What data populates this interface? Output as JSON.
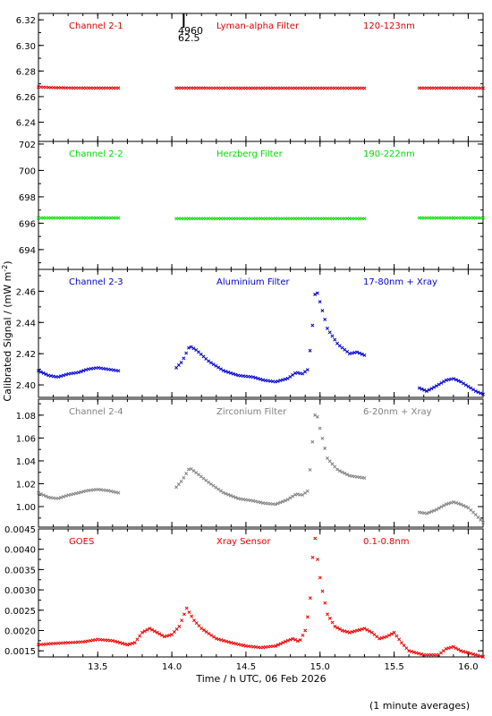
{
  "figure": {
    "ylabel": "Calibrated Signal / (mW m",
    "ylabel_sup": "-2",
    "ylabel_close": ")",
    "xlabel": "Time / h UTC, 06 Feb 2026",
    "footnote": "(1 minute averages)",
    "marker_text_1": "4960",
    "marker_text_2": "62.5",
    "marker_x": 14.08,
    "xlim": [
      13.1,
      16.1
    ],
    "xticks": [
      "13.5",
      "14.0",
      "14.5",
      "15.0",
      "15.5",
      "16.0"
    ],
    "xtick_values": [
      13.5,
      14.0,
      14.5,
      15.0,
      15.5,
      16.0
    ]
  },
  "chart_data": [
    {
      "type": "scatter",
      "channel": "Channel 2-1",
      "filter": "Lyman-alpha Filter",
      "band": "120-123nm",
      "color": "#dd0000",
      "ylim": [
        6.225,
        6.325
      ],
      "yticks": [
        "6.24",
        "6.26",
        "6.28",
        "6.30",
        "6.32"
      ],
      "ytick_values": [
        6.24,
        6.26,
        6.28,
        6.3,
        6.32
      ],
      "segments": [
        {
          "x": [
            13.1,
            13.2,
            13.3,
            13.4,
            13.5,
            13.64
          ],
          "y": [
            6.2675,
            6.267,
            6.2668,
            6.2667,
            6.2667,
            6.2667
          ]
        },
        {
          "x": [
            14.03,
            14.2,
            14.5,
            14.8,
            15.0,
            15.3
          ],
          "y": [
            6.2667,
            6.2667,
            6.2666,
            6.2666,
            6.2666,
            6.2666
          ]
        },
        {
          "x": [
            15.67,
            15.8,
            16.0,
            16.1
          ],
          "y": [
            6.2667,
            6.2667,
            6.2667,
            6.2666
          ]
        }
      ]
    },
    {
      "type": "scatter",
      "channel": "Channel 2-2",
      "filter": "Herzberg Filter",
      "band": "190-222nm",
      "color": "#00dd00",
      "ylim": [
        692.5,
        702.2
      ],
      "yticks": [
        "694",
        "696",
        "698",
        "700",
        "702"
      ],
      "ytick_values": [
        694,
        696,
        698,
        700,
        702
      ],
      "segments": [
        {
          "x": [
            13.1,
            13.3,
            13.5,
            13.64
          ],
          "y": [
            696.4,
            696.4,
            696.4,
            696.4
          ]
        },
        {
          "x": [
            14.03,
            14.3,
            14.6,
            14.9,
            15.3
          ],
          "y": [
            696.35,
            696.35,
            696.35,
            696.35,
            696.35
          ]
        },
        {
          "x": [
            15.67,
            15.9,
            16.1
          ],
          "y": [
            696.4,
            696.4,
            696.4
          ]
        }
      ]
    },
    {
      "type": "scatter",
      "channel": "Channel 2-3",
      "filter": "Aluminium Filter",
      "band": "17-80nm + Xray",
      "color": "#0000cc",
      "ylim": [
        2.392,
        2.474
      ],
      "yticks": [
        "2.40",
        "2.42",
        "2.44",
        "2.46"
      ],
      "ytick_values": [
        2.4,
        2.42,
        2.44,
        2.46
      ],
      "segments": [
        {
          "x": [
            13.1,
            13.17,
            13.23,
            13.3,
            13.37,
            13.43,
            13.5,
            13.57,
            13.64
          ],
          "y": [
            2.409,
            2.406,
            2.405,
            2.407,
            2.408,
            2.41,
            2.411,
            2.41,
            2.409
          ]
        },
        {
          "x": [
            14.03,
            14.07,
            14.12,
            14.17,
            14.25,
            14.35,
            14.45,
            14.55,
            14.62,
            14.7,
            14.78,
            14.84,
            14.88,
            14.92,
            14.95,
            14.97,
            15.0,
            15.05,
            15.12,
            15.2,
            15.25,
            15.3
          ],
          "y": [
            2.411,
            2.415,
            2.425,
            2.422,
            2.415,
            2.409,
            2.406,
            2.405,
            2.403,
            2.402,
            2.404,
            2.408,
            2.407,
            2.41,
            2.439,
            2.463,
            2.453,
            2.436,
            2.426,
            2.42,
            2.421,
            2.419
          ]
        },
        {
          "x": [
            15.67,
            15.72,
            15.78,
            15.85,
            15.9,
            15.95,
            16.0,
            16.05,
            16.1
          ],
          "y": [
            2.398,
            2.396,
            2.399,
            2.403,
            2.404,
            2.402,
            2.399,
            2.396,
            2.394
          ]
        }
      ]
    },
    {
      "type": "scatter",
      "channel": "Channel 2-4",
      "filter": "Zirconium Filter",
      "band": "6-20nm + Xray",
      "color": "#808080",
      "ylim": [
        0.982,
        1.094
      ],
      "yticks": [
        "1.00",
        "1.02",
        "1.04",
        "1.06",
        "1.08"
      ],
      "ytick_values": [
        1.0,
        1.02,
        1.04,
        1.06,
        1.08
      ],
      "segments": [
        {
          "x": [
            13.1,
            13.17,
            13.23,
            13.3,
            13.37,
            13.43,
            13.5,
            13.57,
            13.64
          ],
          "y": [
            1.012,
            1.008,
            1.007,
            1.01,
            1.012,
            1.014,
            1.015,
            1.014,
            1.012
          ]
        },
        {
          "x": [
            14.03,
            14.07,
            14.12,
            14.17,
            14.25,
            14.35,
            14.45,
            14.55,
            14.62,
            14.7,
            14.78,
            14.84,
            14.88,
            14.92,
            14.95,
            14.97,
            15.0,
            15.05,
            15.12,
            15.2,
            15.25,
            15.3
          ],
          "y": [
            1.017,
            1.023,
            1.034,
            1.029,
            1.021,
            1.012,
            1.007,
            1.005,
            1.003,
            1.002,
            1.006,
            1.011,
            1.01,
            1.014,
            1.058,
            1.086,
            1.068,
            1.042,
            1.032,
            1.027,
            1.026,
            1.025
          ]
        },
        {
          "x": [
            15.67,
            15.72,
            15.78,
            15.85,
            15.9,
            15.95,
            16.0,
            16.05,
            16.1
          ],
          "y": [
            0.995,
            0.994,
            0.997,
            1.002,
            1.004,
            1.002,
            0.999,
            0.993,
            0.986
          ]
        }
      ]
    },
    {
      "type": "scatter",
      "channel": "GOES",
      "filter": "Xray Sensor",
      "band": "0.1-0.8nm",
      "color": "#ee0000",
      "ylim": [
        0.00135,
        0.0045
      ],
      "yticks": [
        "0.0015",
        "0.0020",
        "0.0025",
        "0.0030",
        "0.0035",
        "0.0040",
        "0.0045"
      ],
      "ytick_values": [
        0.0015,
        0.002,
        0.0025,
        0.003,
        0.0035,
        0.004,
        0.0045
      ],
      "segments": [
        {
          "x": [
            13.1,
            13.2,
            13.3,
            13.4,
            13.5,
            13.6,
            13.7,
            13.75,
            13.8,
            13.85,
            13.9,
            13.95,
            14.0,
            14.05,
            14.1,
            14.15,
            14.2,
            14.3,
            14.4,
            14.5,
            14.6,
            14.7,
            14.78,
            14.82,
            14.86,
            14.9,
            14.93,
            14.95,
            14.96,
            14.97,
            14.99,
            15.02,
            15.05,
            15.1,
            15.15,
            15.2,
            15.25,
            15.3,
            15.35,
            15.4,
            15.45,
            15.5,
            15.55,
            15.6,
            15.65,
            15.7,
            15.8,
            15.85,
            15.9,
            15.95,
            16.0,
            16.05,
            16.1
          ],
          "y": [
            0.00165,
            0.00168,
            0.0017,
            0.00172,
            0.00178,
            0.00175,
            0.00165,
            0.0017,
            0.00195,
            0.00205,
            0.00195,
            0.00185,
            0.0019,
            0.0021,
            0.00255,
            0.00225,
            0.00205,
            0.0018,
            0.0017,
            0.00162,
            0.00158,
            0.00162,
            0.00175,
            0.0018,
            0.00172,
            0.002,
            0.0026,
            0.0038,
            0.0043,
            0.00425,
            0.0035,
            0.0029,
            0.0024,
            0.0021,
            0.002,
            0.00195,
            0.002,
            0.00205,
            0.00195,
            0.0018,
            0.00185,
            0.00195,
            0.0017,
            0.0015,
            0.00145,
            0.0014,
            0.0014,
            0.00155,
            0.0016,
            0.0015,
            0.00145,
            0.0014,
            0.00135
          ]
        }
      ]
    }
  ]
}
